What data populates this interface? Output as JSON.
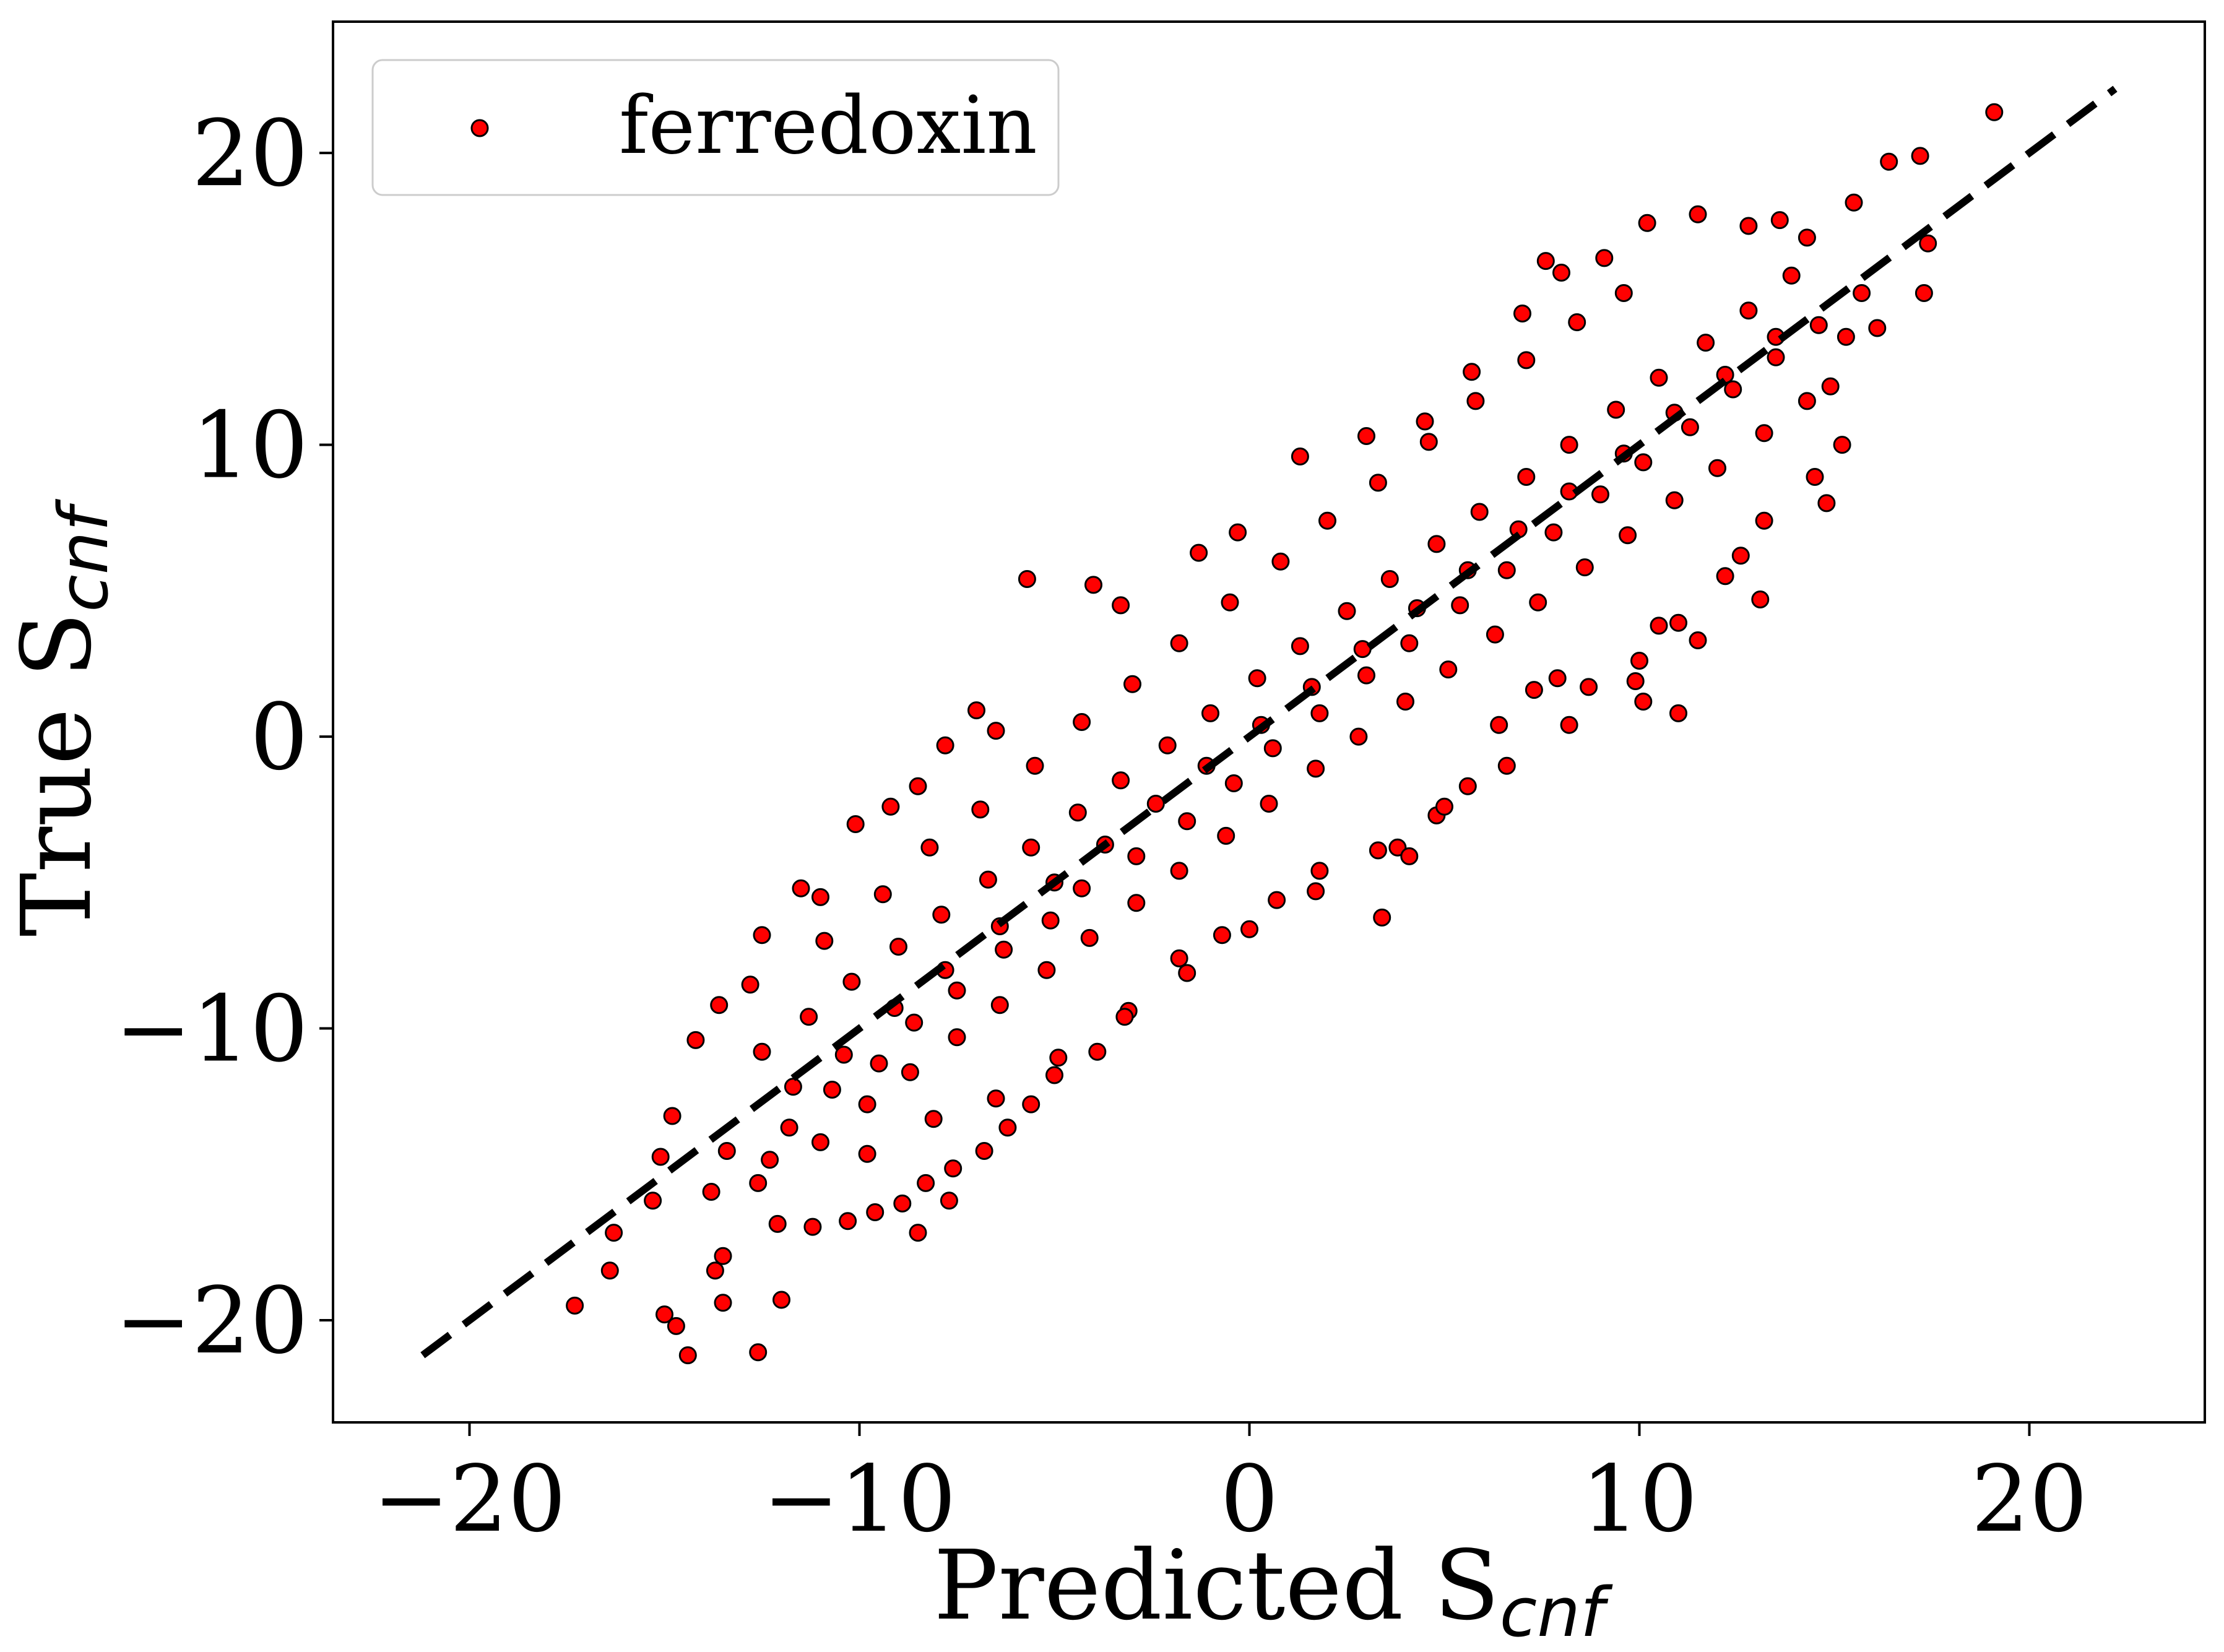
{
  "chart_data": {
    "type": "scatter",
    "xlabel": {
      "main": "Predicted S",
      "sub": "cnf"
    },
    "ylabel": {
      "main": "True S",
      "sub": "cnf"
    },
    "xlim": [
      -23.5,
      24.5
    ],
    "ylim": [
      -23.5,
      24.5
    ],
    "xticks": [
      -20,
      -10,
      0,
      10,
      20
    ],
    "yticks": [
      -20,
      -10,
      0,
      10,
      20
    ],
    "xtick_labels": [
      "−20",
      "−10",
      "0",
      "10",
      "20"
    ],
    "ytick_labels": [
      "−20",
      "−10",
      "0",
      "10",
      "20"
    ],
    "grid": false,
    "legend": {
      "position": "top-left",
      "entries": [
        "ferredoxin"
      ]
    },
    "reference_line": {
      "style": "dashed",
      "color": "#000000",
      "x": [
        -21.2,
        22.2
      ],
      "y": [
        -21.2,
        22.2
      ]
    },
    "series": [
      {
        "name": "ferredoxin",
        "color": "#ff0000",
        "edge_color": "#000000",
        "points": [
          [
            -17.3,
            -19.5
          ],
          [
            -16.4,
            -18.3
          ],
          [
            -15.0,
            -19.8
          ],
          [
            -14.7,
            -20.2
          ],
          [
            -14.4,
            -21.2
          ],
          [
            -13.7,
            -18.3
          ],
          [
            -13.5,
            -19.4
          ],
          [
            -12.6,
            -21.1
          ],
          [
            -12.0,
            -19.3
          ],
          [
            -13.5,
            -17.8
          ],
          [
            -15.3,
            -15.9
          ],
          [
            -16.3,
            -17.0
          ],
          [
            -14.8,
            -13.0
          ],
          [
            -14.2,
            -10.4
          ],
          [
            -15.1,
            -14.4
          ],
          [
            -13.6,
            -9.2
          ],
          [
            -12.8,
            -8.5
          ],
          [
            -12.5,
            -6.8
          ],
          [
            -11.5,
            -5.2
          ],
          [
            -11.0,
            -5.5
          ],
          [
            -10.1,
            -3.0
          ],
          [
            -9.2,
            -2.4
          ],
          [
            -8.5,
            -1.7
          ],
          [
            -7.8,
            -0.3
          ],
          [
            -7.0,
            0.9
          ],
          [
            -6.5,
            0.2
          ],
          [
            -5.7,
            5.4
          ],
          [
            -4.0,
            5.2
          ],
          [
            -3.3,
            4.5
          ],
          [
            -1.3,
            6.3
          ],
          [
            -0.3,
            7.0
          ],
          [
            1.3,
            9.6
          ],
          [
            3.0,
            10.3
          ],
          [
            4.5,
            10.8
          ],
          [
            5.7,
            12.5
          ],
          [
            7.0,
            14.5
          ],
          [
            7.6,
            16.3
          ],
          [
            8.0,
            15.9
          ],
          [
            9.1,
            16.4
          ],
          [
            10.2,
            17.6
          ],
          [
            11.5,
            17.9
          ],
          [
            12.8,
            17.5
          ],
          [
            13.6,
            17.7
          ],
          [
            14.3,
            17.1
          ],
          [
            15.5,
            18.3
          ],
          [
            16.4,
            19.7
          ],
          [
            17.2,
            19.9
          ],
          [
            19.1,
            21.4
          ],
          [
            17.4,
            16.9
          ],
          [
            17.3,
            15.2
          ],
          [
            16.1,
            14.0
          ],
          [
            15.3,
            13.7
          ],
          [
            14.9,
            12.0
          ],
          [
            15.2,
            10.0
          ],
          [
            14.5,
            8.9
          ],
          [
            14.8,
            8.0
          ],
          [
            13.2,
            7.4
          ],
          [
            12.6,
            6.2
          ],
          [
            12.2,
            5.5
          ],
          [
            10.5,
            3.8
          ],
          [
            11.0,
            3.9
          ],
          [
            10.0,
            2.6
          ],
          [
            10.1,
            1.2
          ],
          [
            11.0,
            0.8
          ],
          [
            8.7,
            1.7
          ],
          [
            7.9,
            2.0
          ],
          [
            7.3,
            1.6
          ],
          [
            6.4,
            0.4
          ],
          [
            5.6,
            -1.7
          ],
          [
            4.8,
            -2.7
          ],
          [
            3.8,
            -3.8
          ],
          [
            4.1,
            -4.1
          ],
          [
            3.4,
            -6.2
          ],
          [
            1.8,
            -4.6
          ],
          [
            0.7,
            -5.6
          ],
          [
            -0.7,
            -6.8
          ],
          [
            -1.8,
            -7.6
          ],
          [
            -3.1,
            -9.4
          ],
          [
            -3.9,
            -10.8
          ],
          [
            -5.0,
            -11.6
          ],
          [
            -5.6,
            -12.6
          ],
          [
            -6.2,
            -13.4
          ],
          [
            -6.8,
            -14.2
          ],
          [
            -7.6,
            -14.8
          ],
          [
            -8.3,
            -15.3
          ],
          [
            -8.9,
            -16.0
          ],
          [
            -9.6,
            -16.3
          ],
          [
            -10.3,
            -16.6
          ],
          [
            -11.2,
            -16.8
          ],
          [
            -12.1,
            -16.7
          ],
          [
            -7.7,
            -15.9
          ],
          [
            -8.5,
            -17.0
          ],
          [
            -12.6,
            -15.3
          ],
          [
            -13.4,
            -14.2
          ],
          [
            -11.8,
            -13.4
          ],
          [
            -10.7,
            -12.1
          ],
          [
            -9.5,
            -11.2
          ],
          [
            -8.6,
            -9.8
          ],
          [
            -7.5,
            -8.7
          ],
          [
            -6.3,
            -7.3
          ],
          [
            -5.1,
            -6.3
          ],
          [
            -4.3,
            -5.2
          ],
          [
            -2.9,
            -4.1
          ],
          [
            -1.6,
            -2.9
          ],
          [
            -0.4,
            -1.6
          ],
          [
            0.6,
            -0.4
          ],
          [
            1.8,
            0.8
          ],
          [
            3.0,
            2.1
          ],
          [
            4.1,
            3.2
          ],
          [
            5.4,
            4.5
          ],
          [
            6.6,
            5.7
          ],
          [
            7.8,
            7.0
          ],
          [
            9.0,
            8.3
          ],
          [
            10.1,
            9.4
          ],
          [
            11.3,
            10.6
          ],
          [
            12.4,
            11.9
          ],
          [
            13.5,
            13.0
          ],
          [
            14.6,
            14.1
          ],
          [
            15.7,
            15.2
          ],
          [
            -12.5,
            -10.8
          ],
          [
            -11.3,
            -9.6
          ],
          [
            -10.2,
            -8.4
          ],
          [
            -9.0,
            -7.2
          ],
          [
            -7.9,
            -6.1
          ],
          [
            -6.7,
            -4.9
          ],
          [
            -5.6,
            -3.8
          ],
          [
            -4.4,
            -2.6
          ],
          [
            -3.3,
            -1.5
          ],
          [
            -2.1,
            -0.3
          ],
          [
            -1.0,
            0.8
          ],
          [
            0.2,
            2.0
          ],
          [
            1.3,
            3.1
          ],
          [
            2.5,
            4.3
          ],
          [
            3.6,
            5.4
          ],
          [
            4.8,
            6.6
          ],
          [
            5.9,
            7.7
          ],
          [
            7.1,
            8.9
          ],
          [
            8.2,
            10.0
          ],
          [
            9.4,
            11.2
          ],
          [
            10.5,
            12.3
          ],
          [
            11.7,
            13.5
          ],
          [
            12.8,
            14.6
          ],
          [
            13.9,
            15.8
          ],
          [
            -13.8,
            -15.6
          ],
          [
            -12.3,
            -14.5
          ],
          [
            -11.0,
            -13.9
          ],
          [
            -9.8,
            -12.6
          ],
          [
            -8.7,
            -11.5
          ],
          [
            -7.5,
            -10.3
          ],
          [
            -6.4,
            -9.2
          ],
          [
            -5.2,
            -8.0
          ],
          [
            -4.1,
            -6.9
          ],
          [
            -2.9,
            -5.7
          ],
          [
            -1.8,
            -4.6
          ],
          [
            -0.6,
            -3.4
          ],
          [
            0.5,
            -2.3
          ],
          [
            1.7,
            -1.1
          ],
          [
            2.8,
            0.0
          ],
          [
            4.0,
            1.2
          ],
          [
            5.1,
            2.3
          ],
          [
            6.3,
            3.5
          ],
          [
            7.4,
            4.6
          ],
          [
            8.6,
            5.8
          ],
          [
            9.7,
            6.9
          ],
          [
            10.9,
            8.1
          ],
          [
            12.0,
            9.2
          ],
          [
            13.2,
            10.4
          ],
          [
            14.3,
            11.5
          ],
          [
            -10.9,
            -7.0
          ],
          [
            -9.4,
            -5.4
          ],
          [
            -8.2,
            -3.8
          ],
          [
            -6.9,
            -2.5
          ],
          [
            -5.5,
            -1.0
          ],
          [
            -4.3,
            0.5
          ],
          [
            -3.0,
            1.8
          ],
          [
            -1.8,
            3.2
          ],
          [
            -0.5,
            4.6
          ],
          [
            0.8,
            6.0
          ],
          [
            2.0,
            7.4
          ],
          [
            3.3,
            8.7
          ],
          [
            4.6,
            10.1
          ],
          [
            5.8,
            11.5
          ],
          [
            7.1,
            12.9
          ],
          [
            8.4,
            14.2
          ],
          [
            9.6,
            15.2
          ],
          [
            -9.8,
            -14.3
          ],
          [
            -8.1,
            -13.1
          ],
          [
            -6.5,
            -12.4
          ],
          [
            -4.9,
            -11.0
          ],
          [
            -3.2,
            -9.6
          ],
          [
            -1.6,
            -8.1
          ],
          [
            0.0,
            -6.6
          ],
          [
            1.7,
            -5.3
          ],
          [
            3.3,
            -3.9
          ],
          [
            5.0,
            -2.4
          ],
          [
            6.6,
            -1.0
          ],
          [
            8.2,
            0.4
          ],
          [
            9.9,
            1.9
          ],
          [
            11.5,
            3.3
          ],
          [
            13.1,
            4.7
          ],
          [
            -11.7,
            -12.0
          ],
          [
            -10.4,
            -10.9
          ],
          [
            -9.1,
            -9.3
          ],
          [
            -7.8,
            -8.0
          ],
          [
            -6.4,
            -6.5
          ],
          [
            -5.0,
            -5.0
          ],
          [
            -3.7,
            -3.7
          ],
          [
            -2.4,
            -2.3
          ],
          [
            -1.1,
            -1.0
          ],
          [
            0.3,
            0.4
          ],
          [
            1.6,
            1.7
          ],
          [
            2.9,
            3.0
          ],
          [
            4.3,
            4.4
          ],
          [
            5.6,
            5.7
          ],
          [
            6.9,
            7.1
          ],
          [
            8.2,
            8.4
          ],
          [
            9.6,
            9.7
          ],
          [
            10.9,
            11.1
          ],
          [
            12.2,
            12.4
          ],
          [
            13.5,
            13.7
          ]
        ]
      }
    ]
  }
}
